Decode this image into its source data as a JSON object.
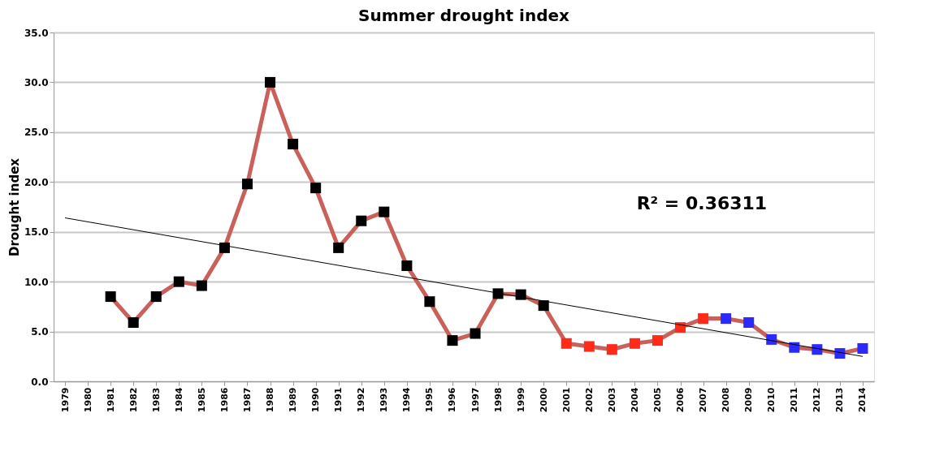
{
  "chart_data": {
    "type": "line",
    "title": "Summer drought index",
    "ylabel": "Drought index",
    "categories": [
      "1979",
      "1980",
      "1981",
      "1982",
      "1983",
      "1984",
      "1985",
      "1986",
      "1987",
      "1988",
      "1989",
      "1990",
      "1991",
      "1992",
      "1993",
      "1994",
      "1995",
      "1996",
      "1997",
      "1998",
      "1999",
      "2000",
      "2001",
      "2002",
      "2003",
      "2004",
      "2005",
      "2006",
      "2007",
      "2008",
      "2009",
      "2010",
      "2011",
      "2012",
      "2013",
      "2014"
    ],
    "series": [
      {
        "color": "#c9605a",
        "marker": "square",
        "values": [
          null,
          null,
          8.5,
          5.9,
          8.5,
          10.0,
          9.6,
          13.4,
          19.8,
          30.0,
          23.8,
          19.4,
          13.4,
          16.1,
          17.0,
          11.6,
          8.0,
          4.1,
          4.8,
          8.8,
          8.7,
          7.6,
          3.8,
          3.5,
          3.2,
          3.8,
          4.1,
          5.4,
          6.3,
          6.3,
          5.9,
          4.2,
          3.4,
          3.2,
          2.8,
          3.3
        ],
        "colors": [
          "#000000",
          "#000000",
          "#000000",
          "#000000",
          "#000000",
          "#000000",
          "#000000",
          "#000000",
          "#000000",
          "#000000",
          "#000000",
          "#000000",
          "#000000",
          "#000000",
          "#000000",
          "#000000",
          "#000000",
          "#000000",
          "#000000",
          "#000000",
          "#000000",
          "#000000",
          "#ff2a1a",
          "#ff2a1a",
          "#ff2a1a",
          "#ff2a1a",
          "#ff2a1a",
          "#ff2a1a",
          "#ff2a1a",
          "#2a2aff",
          "#2a2aff",
          "#2a2aff",
          "#2a2aff",
          "#2a2aff",
          "#2a2aff",
          "#2a2aff"
        ]
      },
      {
        "type": "line",
        "color": "#000000",
        "marker": "none",
        "values": [
          16.4,
          null,
          null,
          null,
          null,
          null,
          null,
          null,
          null,
          null,
          null,
          null,
          null,
          null,
          null,
          null,
          null,
          null,
          null,
          null,
          null,
          null,
          null,
          null,
          null,
          null,
          null,
          null,
          null,
          null,
          null,
          null,
          null,
          null,
          null,
          2.5
        ]
      }
    ],
    "ylim": [
      0,
      35
    ],
    "yticks": [
      {
        "value": 0,
        "label": "0.0"
      },
      {
        "value": 5,
        "label": "5.0"
      },
      {
        "value": 10,
        "label": "10.0"
      },
      {
        "value": 15,
        "label": "15.0"
      },
      {
        "value": 20,
        "label": "20.0"
      },
      {
        "value": 25,
        "label": "25.0"
      },
      {
        "value": 30,
        "label": "30.0"
      },
      {
        "value": 35,
        "label": "35.0"
      }
    ],
    "grid": "y",
    "annotations": [
      "R² = 0.36311"
    ]
  }
}
